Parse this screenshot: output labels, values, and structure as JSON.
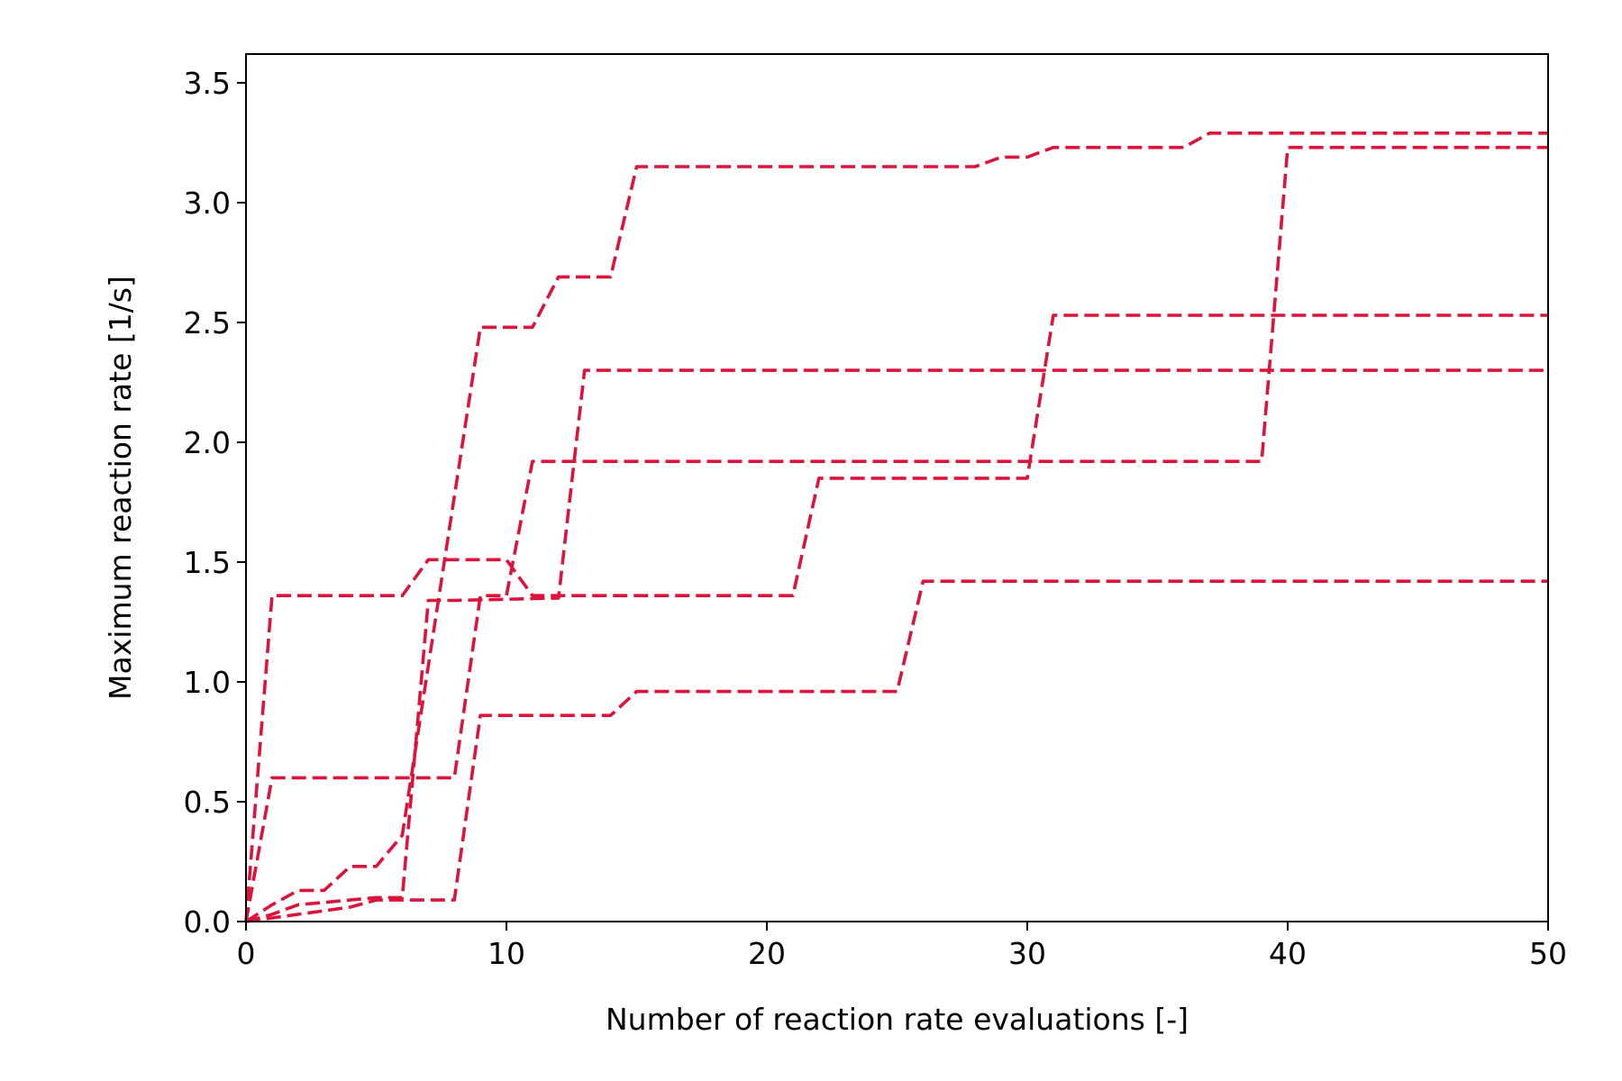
{
  "chart_data": {
    "type": "line",
    "xlabel": "Number of reaction rate evaluations [-]",
    "ylabel": "Maximum reaction rate [1/s]",
    "xlim": [
      0,
      50
    ],
    "ylim": [
      0,
      3.62
    ],
    "xticks": [
      0,
      10,
      20,
      30,
      40,
      50
    ],
    "xtick_labels": [
      "0",
      "10",
      "20",
      "30",
      "40",
      "50"
    ],
    "yticks": [
      0,
      0.5,
      1.0,
      1.5,
      2.0,
      2.5,
      3.0,
      3.5
    ],
    "ytick_labels": [
      "0.0",
      "0.5",
      "1.0",
      "1.5",
      "2.0",
      "2.5",
      "3.0",
      "3.5"
    ],
    "grid": false,
    "legend": "none",
    "line_style": "dashed",
    "color": "#dc143c",
    "series": [
      {
        "x": [
          0,
          1,
          2,
          3,
          4,
          5,
          6,
          9,
          11,
          12,
          14,
          15,
          28,
          29,
          30,
          31,
          36,
          37,
          50
        ],
        "y": [
          0,
          0.07,
          0.13,
          0.13,
          0.23,
          0.23,
          0.36,
          2.48,
          2.48,
          2.69,
          2.69,
          3.15,
          3.15,
          3.19,
          3.19,
          3.23,
          3.23,
          3.29,
          3.29
        ]
      },
      {
        "x": [
          0,
          1,
          2,
          5,
          6,
          7,
          8,
          12,
          13,
          50
        ],
        "y": [
          0,
          0.03,
          0.07,
          0.1,
          0.1,
          1.34,
          1.34,
          1.35,
          2.3,
          2.3
        ]
      },
      {
        "x": [
          0,
          1,
          8,
          9,
          10,
          11,
          39,
          40,
          50
        ],
        "y": [
          0,
          0.6,
          0.6,
          1.36,
          1.36,
          1.92,
          1.92,
          3.23,
          3.23
        ]
      },
      {
        "x": [
          0,
          2,
          4,
          5,
          8,
          9,
          14,
          15,
          25,
          26,
          50
        ],
        "y": [
          0,
          0.03,
          0.06,
          0.09,
          0.09,
          0.86,
          0.86,
          0.96,
          0.96,
          1.42,
          1.42
        ]
      },
      {
        "x": [
          0,
          1,
          6,
          7,
          10,
          11,
          21,
          22,
          30,
          31,
          50
        ],
        "y": [
          0,
          1.36,
          1.36,
          1.51,
          1.51,
          1.36,
          1.36,
          1.85,
          1.85,
          2.53,
          2.53
        ]
      }
    ]
  }
}
